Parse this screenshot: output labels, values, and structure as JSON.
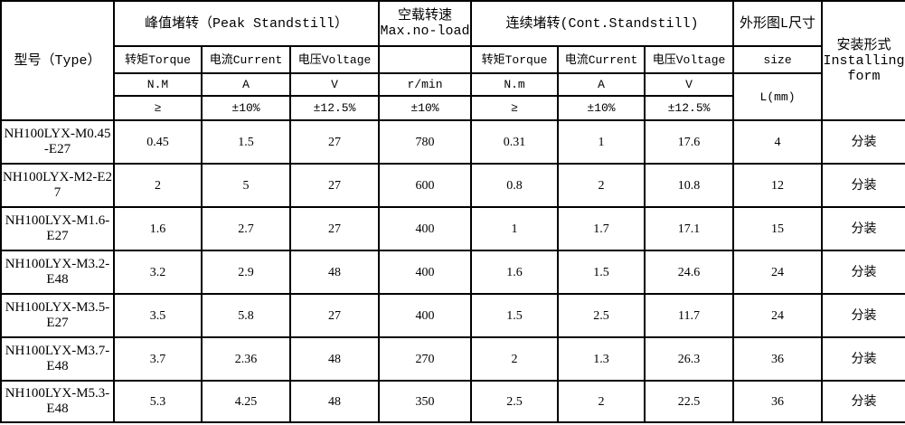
{
  "header": {
    "type": "型号（Type）",
    "peak": "峰值堵转（Peak Standstill）",
    "noload_cn": "空载转速",
    "noload_en": "Max.no-load",
    "cont": "连续堵转(Cont.Standstill)",
    "size_group": "外形图L尺寸",
    "install_cn": "安装形式",
    "install_en": "Installing form",
    "sub": [
      "转矩Torque",
      "电流Current",
      "电压Voltage",
      "",
      "转矩Torque",
      "电流Current",
      "电压Voltage",
      "size"
    ],
    "units": [
      "N.M",
      "A",
      "V",
      "r/min",
      "N.m",
      "A",
      "V"
    ],
    "size_unit": "L(mm)",
    "tolerances": [
      "≥",
      "±10%",
      "±12.5%",
      "±10%",
      "≥",
      "±10%",
      "±12.5%"
    ]
  },
  "rows": [
    [
      "NH100LYX-M0.45-E27",
      "0.45",
      "1.5",
      "27",
      "780",
      "0.31",
      "1",
      "17.6",
      "4",
      "分装"
    ],
    [
      "NH100LYX-M2-E27",
      "2",
      "5",
      "27",
      "600",
      "0.8",
      "2",
      "10.8",
      "12",
      "分装"
    ],
    [
      "NH100LYX-M1.6-E27",
      "1.6",
      "2.7",
      "27",
      "400",
      "1",
      "1.7",
      "17.1",
      "15",
      "分装"
    ],
    [
      "NH100LYX-M3.2-E48",
      "3.2",
      "2.9",
      "48",
      "400",
      "1.6",
      "1.5",
      "24.6",
      "24",
      "分装"
    ],
    [
      "NH100LYX-M3.5-E27",
      "3.5",
      "5.8",
      "27",
      "400",
      "1.5",
      "2.5",
      "11.7",
      "24",
      "分装"
    ],
    [
      "NH100LYX-M3.7-E48",
      "3.7",
      "2.36",
      "48",
      "270",
      "2",
      "1.3",
      "26.3",
      "36",
      "分装"
    ],
    [
      "NH100LYX-M5.3-E48",
      "5.3",
      "4.25",
      "48",
      "350",
      "2.5",
      "2",
      "22.5",
      "36",
      "分装"
    ]
  ]
}
